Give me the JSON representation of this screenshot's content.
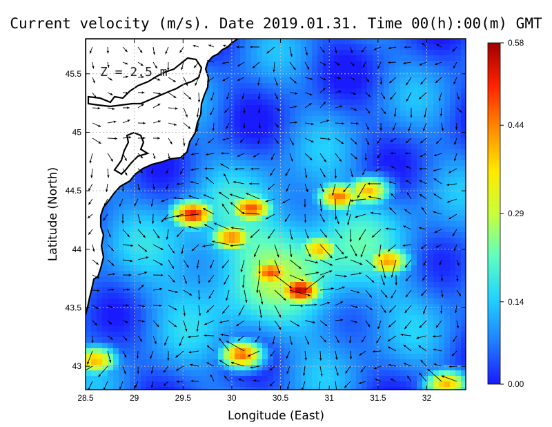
{
  "chart_data": {
    "type": "heatmap",
    "title": "Current velocity (m/s). Date 2019.01.31. Time 00(h):00(m) GMT",
    "annotation": "Z = 2.5 m",
    "xlabel": "Longitude (East)",
    "ylabel": "Latitude (North)",
    "xlim": [
      28.5,
      32.4
    ],
    "ylim": [
      42.8,
      45.8
    ],
    "x_ticks": [
      "28.5",
      "29",
      "29.5",
      "30",
      "30.5",
      "31",
      "31.5",
      "32"
    ],
    "y_ticks": [
      "43",
      "43.5",
      "44",
      "44.5",
      "45",
      "45.5"
    ],
    "grid": true,
    "colorbar": {
      "min": 0.0,
      "max": 0.58,
      "ticks": [
        "0.00",
        "0.14",
        "0.29",
        "0.44",
        "0.58"
      ],
      "colormap": [
        "#1a1aff",
        "#1f7fff",
        "#22d2ff",
        "#5effc0",
        "#c8ff3a",
        "#ffe900",
        "#ff8a00",
        "#ff2200",
        "#a00000"
      ]
    },
    "colors": {
      "land": "#ffffff",
      "coastline": "#000000",
      "arrows": "#000000",
      "grid": "#bbbbbb"
    },
    "hotspots": [
      {
        "lon": 30.7,
        "lat": 43.65,
        "value": 0.56
      },
      {
        "lon": 30.4,
        "lat": 43.8,
        "value": 0.48
      },
      {
        "lon": 29.6,
        "lat": 44.3,
        "value": 0.52
      },
      {
        "lon": 30.2,
        "lat": 44.35,
        "value": 0.48
      },
      {
        "lon": 31.1,
        "lat": 44.45,
        "value": 0.45
      },
      {
        "lon": 30.0,
        "lat": 44.1,
        "value": 0.44
      },
      {
        "lon": 30.1,
        "lat": 43.1,
        "value": 0.46
      },
      {
        "lon": 28.6,
        "lat": 43.05,
        "value": 0.4
      },
      {
        "lon": 31.6,
        "lat": 43.9,
        "value": 0.42
      },
      {
        "lon": 32.2,
        "lat": 42.85,
        "value": 0.4
      },
      {
        "lon": 31.4,
        "lat": 44.5,
        "value": 0.4
      },
      {
        "lon": 30.9,
        "lat": 44.0,
        "value": 0.4
      }
    ]
  }
}
